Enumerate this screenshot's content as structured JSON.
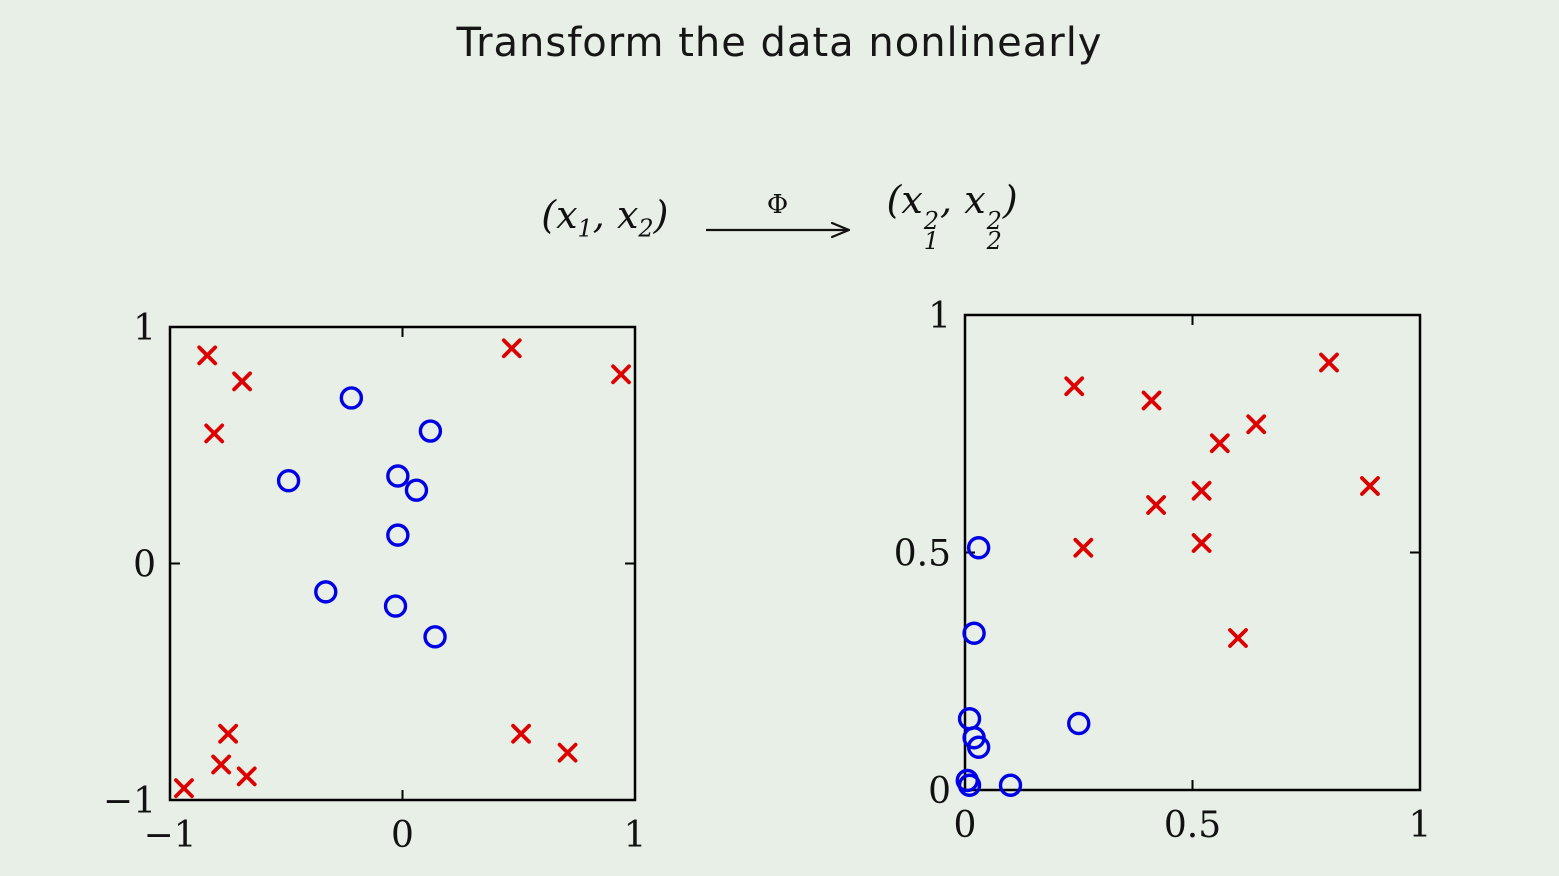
{
  "title": "Transform the data nonlinearly",
  "formula": {
    "lhs_open": "(x",
    "lhs_sub1": "1",
    "lhs_mid": ", x",
    "lhs_sub2": "2",
    "lhs_close": ")",
    "arrow_label": "Φ",
    "rhs_open": "(x",
    "rhs_sup1": "2",
    "rhs_sub1": "1",
    "rhs_mid": ", x",
    "rhs_sup2": "2",
    "rhs_sub2": "2",
    "rhs_close": ")"
  },
  "colors": {
    "background": "#e8efe6",
    "cross": "#dd0000",
    "circle": "#0000e6",
    "axis": "#000000",
    "text": "#111111"
  },
  "chart_data": [
    {
      "id": "input-space",
      "type": "scatter",
      "title": "",
      "xlabel": "",
      "ylabel": "",
      "grid": false,
      "legend": "none",
      "xlim": [
        -1,
        1
      ],
      "ylim": [
        -1,
        1
      ],
      "xticks": [
        {
          "value": -1,
          "label": "−1"
        },
        {
          "value": 0,
          "label": "0"
        },
        {
          "value": 1,
          "label": "1"
        }
      ],
      "yticks": [
        {
          "value": -1,
          "label": "−1"
        },
        {
          "value": 0,
          "label": "0"
        },
        {
          "value": 1,
          "label": "1"
        }
      ],
      "series": [
        {
          "name": "crosses",
          "marker": "cross",
          "color": "#dd0000",
          "points": [
            [
              -0.84,
              0.88
            ],
            [
              -0.69,
              0.77
            ],
            [
              -0.81,
              0.55
            ],
            [
              0.47,
              0.91
            ],
            [
              0.94,
              0.8
            ],
            [
              -0.75,
              -0.72
            ],
            [
              -0.78,
              -0.85
            ],
            [
              -0.67,
              -0.9
            ],
            [
              -0.94,
              -0.95
            ],
            [
              0.51,
              -0.72
            ],
            [
              0.71,
              -0.8
            ]
          ]
        },
        {
          "name": "circles",
          "marker": "circle",
          "color": "#0000e6",
          "points": [
            [
              -0.22,
              0.7
            ],
            [
              0.12,
              0.56
            ],
            [
              -0.49,
              0.35
            ],
            [
              -0.02,
              0.37
            ],
            [
              0.06,
              0.31
            ],
            [
              -0.02,
              0.12
            ],
            [
              -0.33,
              -0.12
            ],
            [
              -0.03,
              -0.18
            ],
            [
              0.14,
              -0.31
            ]
          ]
        }
      ]
    },
    {
      "id": "feature-space",
      "type": "scatter",
      "title": "",
      "xlabel": "",
      "ylabel": "",
      "grid": false,
      "legend": "none",
      "xlim": [
        0,
        1
      ],
      "ylim": [
        0,
        1
      ],
      "xticks": [
        {
          "value": 0,
          "label": "0"
        },
        {
          "value": 0.5,
          "label": "0.5"
        },
        {
          "value": 1,
          "label": "1"
        }
      ],
      "yticks": [
        {
          "value": 0,
          "label": "0"
        },
        {
          "value": 0.5,
          "label": "0.5"
        },
        {
          "value": 1,
          "label": "1"
        }
      ],
      "series": [
        {
          "name": "crosses",
          "marker": "cross",
          "color": "#dd0000",
          "points": [
            [
              0.24,
              0.85
            ],
            [
              0.41,
              0.82
            ],
            [
              0.8,
              0.9
            ],
            [
              0.64,
              0.77
            ],
            [
              0.56,
              0.73
            ],
            [
              0.89,
              0.64
            ],
            [
              0.52,
              0.63
            ],
            [
              0.42,
              0.6
            ],
            [
              0.26,
              0.51
            ],
            [
              0.52,
              0.52
            ],
            [
              0.6,
              0.32
            ]
          ]
        },
        {
          "name": "circles",
          "marker": "circle",
          "color": "#0000e6",
          "points": [
            [
              0.03,
              0.51
            ],
            [
              0.02,
              0.33
            ],
            [
              0.25,
              0.14
            ],
            [
              0.01,
              0.15
            ],
            [
              0.03,
              0.09
            ],
            [
              0.02,
              0.11
            ],
            [
              0.1,
              0.01
            ],
            [
              0.005,
              0.02
            ],
            [
              0.01,
              0.01
            ]
          ]
        }
      ]
    }
  ]
}
